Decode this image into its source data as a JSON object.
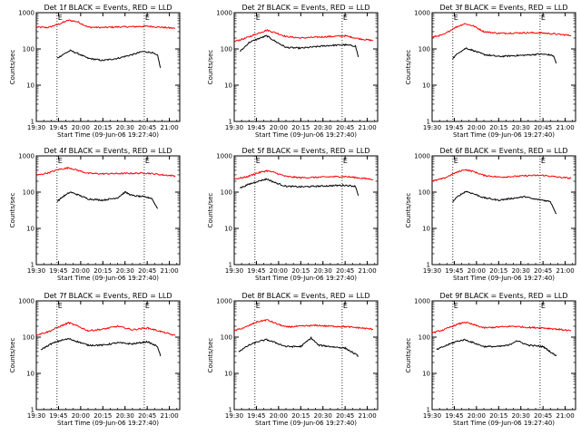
{
  "figure": {
    "x_title": "Start Time (09-Jun-06 19:27:40)",
    "y_title": "Counts/sec",
    "marker_label": "E",
    "colors": {
      "events": "#000000",
      "lld": "#ff0000",
      "axes": "#000000",
      "background": "#ffffff"
    }
  },
  "chart_data": [
    {
      "type": "line",
      "title": "Det 1f BLACK = Events, RED = LLD",
      "xlabel": "Start Time (09-Jun-06 19:27:40)",
      "ylabel": "Counts/sec",
      "x_ticks": [
        "19:30",
        "19:45",
        "20:00",
        "20:15",
        "20:30",
        "20:45",
        "21:00"
      ],
      "y_ticks": [
        "1",
        "10",
        "100",
        "1000"
      ],
      "y_scale": "log",
      "xlim": [
        "19:30",
        "21:07"
      ],
      "ylim": [
        1,
        1000
      ],
      "event_markers": [
        "19:44",
        "20:43"
      ],
      "series": [
        {
          "color": "#ff0000",
          "x": [
            "19:30",
            "19:38",
            "19:45",
            "19:52",
            "19:58",
            "20:05",
            "20:15",
            "20:25",
            "20:35",
            "20:45",
            "20:55",
            "21:04"
          ],
          "values": [
            400,
            390,
            480,
            620,
            560,
            400,
            390,
            405,
            410,
            425,
            395,
            370
          ]
        },
        {
          "color": "#000000",
          "x": [
            "19:44",
            "19:48",
            "19:53",
            "19:58",
            "20:05",
            "20:15",
            "20:25",
            "20:35",
            "20:42",
            "20:48",
            "20:52",
            "20:54"
          ],
          "values": [
            55,
            70,
            90,
            75,
            55,
            48,
            55,
            70,
            85,
            80,
            65,
            30
          ]
        }
      ]
    },
    {
      "type": "line",
      "title": "Det 2f BLACK = Events, RED = LLD",
      "xlabel": "Start Time (09-Jun-06 19:27:40)",
      "ylabel": "Counts/sec",
      "x_ticks": [
        "19:30",
        "19:45",
        "20:00",
        "20:15",
        "20:30",
        "20:45",
        "21:00"
      ],
      "y_ticks": [
        "1",
        "10",
        "100",
        "1000"
      ],
      "y_scale": "log",
      "xlim": [
        "19:30",
        "21:07"
      ],
      "ylim": [
        1,
        1000
      ],
      "event_markers": [
        "19:44",
        "20:43"
      ],
      "series": [
        {
          "color": "#ff0000",
          "x": [
            "19:30",
            "19:38",
            "19:45",
            "19:52",
            "19:58",
            "20:05",
            "20:15",
            "20:25",
            "20:35",
            "20:45",
            "20:55",
            "21:04"
          ],
          "values": [
            160,
            200,
            260,
            330,
            280,
            220,
            200,
            210,
            220,
            230,
            190,
            170
          ]
        },
        {
          "color": "#000000",
          "x": [
            "19:34",
            "19:40",
            "19:46",
            "19:52",
            "19:58",
            "20:05",
            "20:15",
            "20:25",
            "20:35",
            "20:45",
            "20:52",
            "20:54"
          ],
          "values": [
            85,
            150,
            190,
            230,
            160,
            110,
            105,
            115,
            125,
            130,
            120,
            60
          ]
        }
      ]
    },
    {
      "type": "line",
      "title": "Det 3f BLACK = Events, RED = LLD",
      "xlabel": "Start Time (09-Jun-06 19:27:40)",
      "ylabel": "Counts/sec",
      "x_ticks": [
        "19:30",
        "19:45",
        "20:00",
        "20:15",
        "20:30",
        "20:45",
        "21:00"
      ],
      "y_ticks": [
        "1",
        "10",
        "100",
        "1000"
      ],
      "y_scale": "log",
      "xlim": [
        "19:30",
        "21:07"
      ],
      "ylim": [
        1,
        1000
      ],
      "event_markers": [
        "19:44",
        "20:43"
      ],
      "series": [
        {
          "color": "#ff0000",
          "x": [
            "19:30",
            "19:38",
            "19:45",
            "19:52",
            "19:58",
            "20:05",
            "20:15",
            "20:25",
            "20:35",
            "20:45",
            "20:55",
            "21:04"
          ],
          "values": [
            210,
            250,
            380,
            500,
            430,
            300,
            270,
            275,
            280,
            275,
            255,
            235
          ]
        },
        {
          "color": "#000000",
          "x": [
            "19:44",
            "19:48",
            "19:53",
            "19:58",
            "20:05",
            "20:15",
            "20:25",
            "20:35",
            "20:42",
            "20:48",
            "20:52",
            "20:54"
          ],
          "values": [
            55,
            80,
            105,
            90,
            70,
            62,
            65,
            68,
            72,
            70,
            65,
            40
          ]
        }
      ]
    },
    {
      "type": "line",
      "title": "Det 4f BLACK = Events, RED = LLD",
      "xlabel": "Start Time (09-Jun-06 19:27:40)",
      "ylabel": "Counts/sec",
      "x_ticks": [
        "19:30",
        "19:45",
        "20:00",
        "20:15",
        "20:30",
        "20:45",
        "21:00"
      ],
      "y_ticks": [
        "1",
        "10",
        "100",
        "1000"
      ],
      "y_scale": "log",
      "xlim": [
        "19:30",
        "21:07"
      ],
      "ylim": [
        1,
        1000
      ],
      "event_markers": [
        "19:44",
        "20:43"
      ],
      "series": [
        {
          "color": "#ff0000",
          "x": [
            "19:30",
            "19:38",
            "19:45",
            "19:52",
            "19:58",
            "20:05",
            "20:15",
            "20:25",
            "20:35",
            "20:45",
            "20:55",
            "21:04"
          ],
          "values": [
            290,
            340,
            420,
            470,
            400,
            330,
            320,
            325,
            330,
            335,
            300,
            280
          ]
        },
        {
          "color": "#000000",
          "x": [
            "19:44",
            "19:48",
            "19:53",
            "19:58",
            "20:05",
            "20:15",
            "20:25",
            "20:30",
            "20:35",
            "20:42",
            "20:48",
            "20:52"
          ],
          "values": [
            55,
            75,
            100,
            85,
            65,
            60,
            70,
            100,
            80,
            75,
            68,
            35
          ]
        }
      ]
    },
    {
      "type": "line",
      "title": "Det 5f BLACK = Events, RED = LLD",
      "xlabel": "Start Time (09-Jun-06 19:27:40)",
      "ylabel": "Counts/sec",
      "x_ticks": [
        "19:30",
        "19:45",
        "20:00",
        "20:15",
        "20:30",
        "20:45",
        "21:00"
      ],
      "y_ticks": [
        "1",
        "10",
        "100",
        "1000"
      ],
      "y_scale": "log",
      "xlim": [
        "19:30",
        "21:07"
      ],
      "ylim": [
        1,
        1000
      ],
      "event_markers": [
        "19:44",
        "20:43"
      ],
      "series": [
        {
          "color": "#ff0000",
          "x": [
            "19:30",
            "19:38",
            "19:45",
            "19:52",
            "19:58",
            "20:05",
            "20:15",
            "20:25",
            "20:35",
            "20:45",
            "20:55",
            "21:04"
          ],
          "values": [
            230,
            260,
            330,
            390,
            340,
            270,
            250,
            255,
            265,
            270,
            245,
            225
          ]
        },
        {
          "color": "#000000",
          "x": [
            "19:34",
            "19:40",
            "19:46",
            "19:52",
            "19:58",
            "20:05",
            "20:15",
            "20:25",
            "20:35",
            "20:45",
            "20:52",
            "20:54"
          ],
          "values": [
            130,
            165,
            200,
            230,
            180,
            145,
            140,
            145,
            150,
            155,
            145,
            80
          ]
        }
      ]
    },
    {
      "type": "line",
      "title": "Det 6f BLACK = Events, RED = LLD",
      "xlabel": "Start Time (09-Jun-06 19:27:40)",
      "ylabel": "Counts/sec",
      "x_ticks": [
        "19:30",
        "19:45",
        "20:00",
        "20:15",
        "20:30",
        "20:45",
        "21:00"
      ],
      "y_ticks": [
        "1",
        "10",
        "100",
        "1000"
      ],
      "y_scale": "log",
      "xlim": [
        "19:30",
        "21:07"
      ],
      "ylim": [
        1,
        1000
      ],
      "event_markers": [
        "19:44",
        "20:43"
      ],
      "series": [
        {
          "color": "#ff0000",
          "x": [
            "19:30",
            "19:38",
            "19:45",
            "19:52",
            "19:58",
            "20:05",
            "20:15",
            "20:25",
            "20:35",
            "20:45",
            "20:55",
            "21:04"
          ],
          "values": [
            200,
            240,
            330,
            420,
            370,
            290,
            260,
            270,
            285,
            290,
            260,
            240
          ]
        },
        {
          "color": "#000000",
          "x": [
            "19:44",
            "19:48",
            "19:53",
            "19:58",
            "20:05",
            "20:15",
            "20:25",
            "20:33",
            "20:38",
            "20:45",
            "20:50",
            "20:54"
          ],
          "values": [
            55,
            80,
            105,
            90,
            70,
            60,
            68,
            75,
            65,
            60,
            55,
            25
          ]
        }
      ]
    },
    {
      "type": "line",
      "title": "Det 7f BLACK = Events, RED = LLD",
      "xlabel": "Start Time (09-Jun-06 19:27:40)",
      "ylabel": "Counts/sec",
      "x_ticks": [
        "19:30",
        "19:45",
        "20:00",
        "20:15",
        "20:30",
        "20:45",
        "21:00"
      ],
      "y_ticks": [
        "1",
        "10",
        "100",
        "1000"
      ],
      "y_scale": "log",
      "xlim": [
        "19:30",
        "21:07"
      ],
      "ylim": [
        1,
        1000
      ],
      "event_markers": [
        "19:44",
        "20:43"
      ],
      "series": [
        {
          "color": "#ff0000",
          "x": [
            "19:30",
            "19:38",
            "19:45",
            "19:52",
            "19:58",
            "20:05",
            "20:15",
            "20:25",
            "20:35",
            "20:45",
            "20:55",
            "21:04"
          ],
          "values": [
            115,
            140,
            190,
            250,
            200,
            150,
            165,
            200,
            160,
            180,
            140,
            110
          ]
        },
        {
          "color": "#000000",
          "x": [
            "19:33",
            "19:40",
            "19:46",
            "19:52",
            "19:58",
            "20:05",
            "20:15",
            "20:25",
            "20:35",
            "20:45",
            "20:52",
            "20:54"
          ],
          "values": [
            45,
            65,
            80,
            90,
            75,
            60,
            60,
            70,
            65,
            75,
            55,
            30
          ]
        }
      ]
    },
    {
      "type": "line",
      "title": "Det 8f BLACK = Events, RED = LLD",
      "xlabel": "Start Time (09-Jun-06 19:27:40)",
      "ylabel": "Counts/sec",
      "x_ticks": [
        "19:30",
        "19:45",
        "20:00",
        "20:15",
        "20:30",
        "20:45",
        "21:00"
      ],
      "y_ticks": [
        "1",
        "10",
        "100",
        "1000"
      ],
      "y_scale": "log",
      "xlim": [
        "19:30",
        "21:07"
      ],
      "ylim": [
        1,
        1000
      ],
      "event_markers": [
        "19:44",
        "20:43"
      ],
      "series": [
        {
          "color": "#ff0000",
          "x": [
            "19:30",
            "19:38",
            "19:45",
            "19:52",
            "19:58",
            "20:05",
            "20:15",
            "20:25",
            "20:35",
            "20:45",
            "20:55",
            "21:04"
          ],
          "values": [
            150,
            190,
            260,
            300,
            240,
            190,
            200,
            210,
            200,
            195,
            180,
            165
          ]
        },
        {
          "color": "#000000",
          "x": [
            "19:33",
            "19:40",
            "19:46",
            "19:52",
            "19:58",
            "20:05",
            "20:15",
            "20:22",
            "20:27",
            "20:35",
            "20:45",
            "20:54"
          ],
          "values": [
            40,
            60,
            75,
            85,
            70,
            55,
            55,
            95,
            60,
            55,
            50,
            30
          ]
        }
      ]
    },
    {
      "type": "line",
      "title": "Det 9f BLACK = Events, RED = LLD",
      "xlabel": "Start Time (09-Jun-06 19:27:40)",
      "ylabel": "Counts/sec",
      "x_ticks": [
        "19:30",
        "19:45",
        "20:00",
        "20:15",
        "20:30",
        "20:45",
        "21:00"
      ],
      "y_ticks": [
        "1",
        "10",
        "100",
        "1000"
      ],
      "y_scale": "log",
      "xlim": [
        "19:30",
        "21:07"
      ],
      "ylim": [
        1,
        1000
      ],
      "event_markers": [
        "19:44",
        "20:43"
      ],
      "series": [
        {
          "color": "#ff0000",
          "x": [
            "19:30",
            "19:38",
            "19:45",
            "19:52",
            "19:58",
            "20:05",
            "20:15",
            "20:25",
            "20:35",
            "20:45",
            "20:55",
            "21:04"
          ],
          "values": [
            130,
            160,
            210,
            260,
            220,
            180,
            190,
            200,
            185,
            180,
            165,
            150
          ]
        },
        {
          "color": "#000000",
          "x": [
            "19:33",
            "19:40",
            "19:46",
            "19:52",
            "19:58",
            "20:05",
            "20:15",
            "20:22",
            "20:27",
            "20:35",
            "20:45",
            "20:54"
          ],
          "values": [
            45,
            60,
            75,
            85,
            70,
            55,
            55,
            60,
            80,
            60,
            55,
            30
          ]
        }
      ]
    }
  ]
}
